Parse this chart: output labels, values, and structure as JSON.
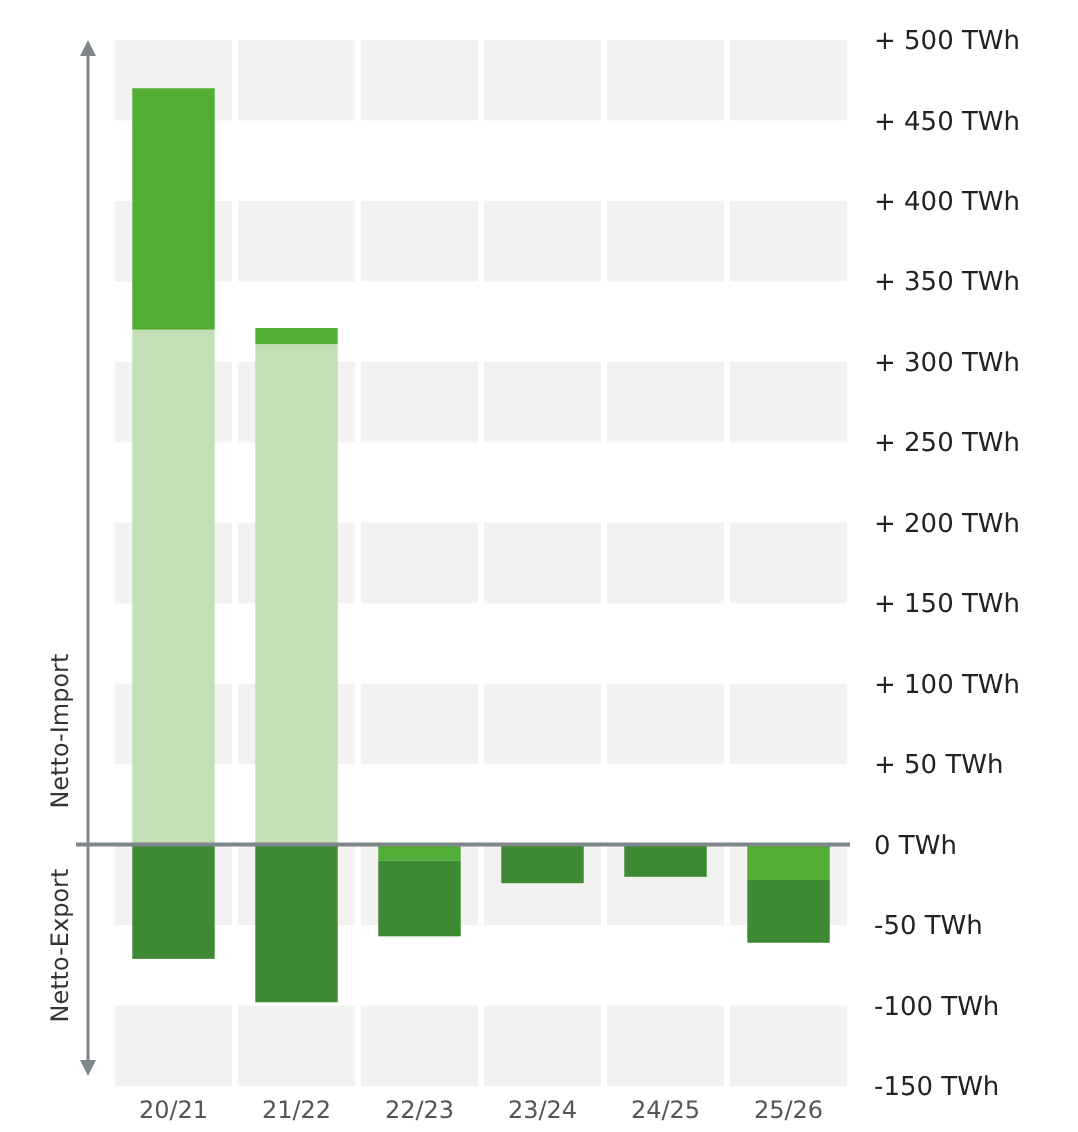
{
  "chart_data": {
    "type": "bar",
    "stacked": true,
    "categories": [
      "20/21",
      "21/22",
      "22/23",
      "23/24",
      "24/25",
      "25/26"
    ],
    "series": [
      {
        "color": "#c4dfb6",
        "values": [
          320,
          311,
          0,
          0,
          0,
          0
        ]
      },
      {
        "color": "#52ad34",
        "values": [
          150,
          10,
          -10,
          0,
          0,
          -22
        ]
      },
      {
        "color": "#3e8934",
        "values": [
          -71,
          -98,
          -47,
          -24,
          -20,
          -39
        ]
      }
    ],
    "ylim": [
      -150,
      500
    ],
    "yticks": [
      {
        "value": 500,
        "label": "+ 500 TWh"
      },
      {
        "value": 450,
        "label": "+ 450 TWh"
      },
      {
        "value": 400,
        "label": "+ 400 TWh"
      },
      {
        "value": 350,
        "label": "+ 350 TWh"
      },
      {
        "value": 300,
        "label": "+ 300 TWh"
      },
      {
        "value": 250,
        "label": "+ 250 TWh"
      },
      {
        "value": 200,
        "label": "+ 200 TWh"
      },
      {
        "value": 150,
        "label": "+ 150 TWh"
      },
      {
        "value": 100,
        "label": "+ 100 TWh"
      },
      {
        "value": 50,
        "label": "+ 50 TWh"
      },
      {
        "value": 0,
        "label": "0 TWh"
      },
      {
        "value": -50,
        "label": "-50 TWh"
      },
      {
        "value": -100,
        "label": "-100 TWh"
      },
      {
        "value": -150,
        "label": "-150 TWh"
      }
    ],
    "bands": [
      {
        "axis": "y",
        "from": 450,
        "to": 500,
        "color": "#f2f2f1"
      },
      {
        "axis": "y",
        "from": 350,
        "to": 400,
        "color": "#f2f2f1"
      },
      {
        "axis": "y",
        "from": 250,
        "to": 300,
        "color": "#f2f2f1"
      },
      {
        "axis": "y",
        "from": 150,
        "to": 200,
        "color": "#f2f2f1"
      },
      {
        "axis": "y",
        "from": 50,
        "to": 100,
        "color": "#f2f2f1"
      },
      {
        "axis": "y",
        "from": -50,
        "to": 0,
        "color": "#f2f2f1"
      },
      {
        "axis": "y",
        "from": -150,
        "to": -100,
        "color": "#f2f2f1"
      }
    ],
    "annotations": [
      "Netto-Import",
      "Netto-Export"
    ]
  }
}
